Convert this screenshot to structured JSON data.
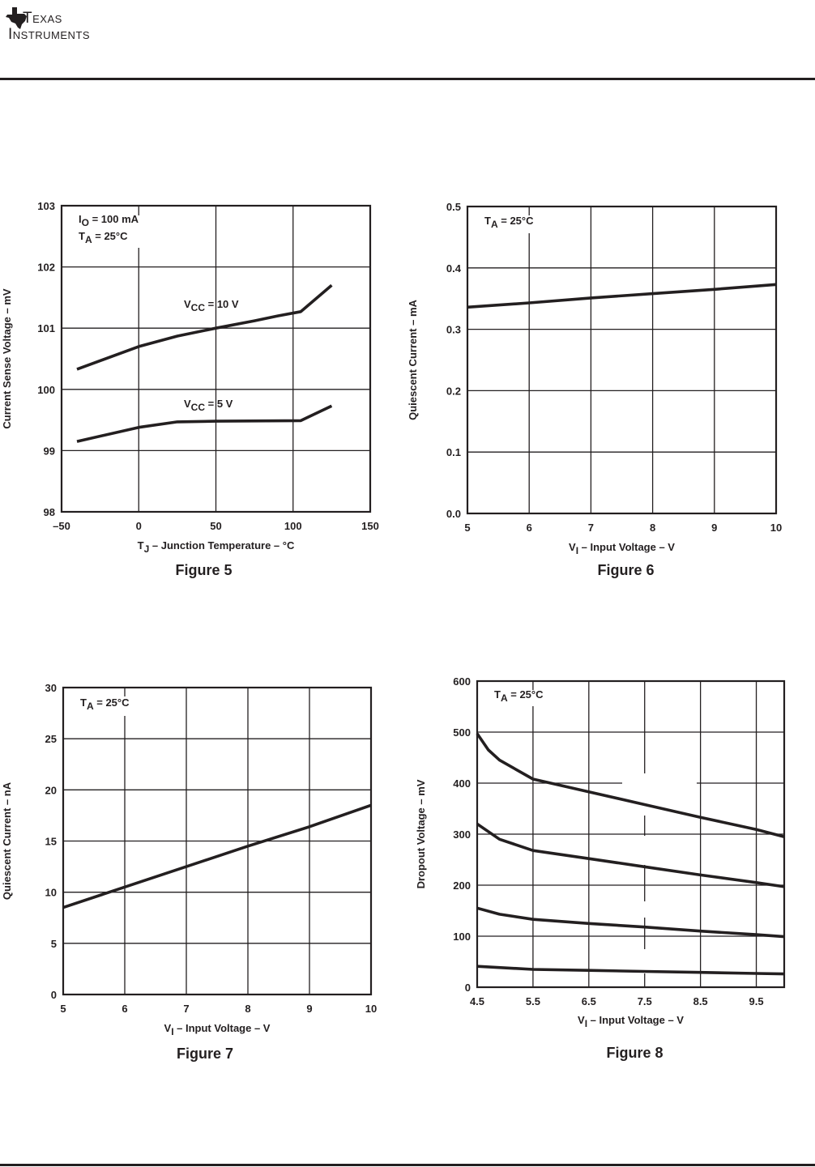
{
  "header": {
    "brand_line1": "Texas",
    "brand_line2": "Instruments",
    "logo_icon": "ti-texas-state-logo-icon"
  },
  "colors": {
    "ink": "#231f20",
    "paper": "#ffffff"
  },
  "chart_data": [
    {
      "id": "fig5",
      "type": "line",
      "figure_label": "Figure 5",
      "title": "",
      "xlabel": "T_J – Junction Temperature – °C",
      "xlabel_main": "T",
      "xlabel_sub": "J",
      "xlabel_rest": " – Junction Temperature – °C",
      "ylabel": "Current Sense Voltage – mV",
      "xlim": [
        -50,
        150
      ],
      "ylim": [
        98,
        103
      ],
      "xticks": [
        -50,
        0,
        50,
        100,
        150
      ],
      "xtick_labels": [
        "–50",
        "0",
        "50",
        "100",
        "150"
      ],
      "yticks": [
        98,
        99,
        100,
        101,
        102,
        103
      ],
      "ytick_labels": [
        "98",
        "99",
        "100",
        "101",
        "102",
        "103"
      ],
      "grid": true,
      "annotations": [
        {
          "main": "I",
          "sub": "O",
          "rest": " = 100 mA"
        },
        {
          "main": "T",
          "sub": "A",
          "rest": " = 25°C"
        }
      ],
      "series": [
        {
          "name": "VCC = 10 V",
          "label_main": "V",
          "label_sub": "CC",
          "label_rest": " =  10 V",
          "x": [
            -40,
            0,
            25,
            50,
            75,
            90,
            105,
            125
          ],
          "y": [
            100.33,
            100.7,
            100.87,
            101.0,
            101.12,
            101.2,
            101.27,
            101.7
          ]
        },
        {
          "name": "VCC = 5 V",
          "label_main": "V",
          "label_sub": "CC",
          "label_rest": " = 5 V",
          "x": [
            -40,
            0,
            25,
            50,
            105,
            125
          ],
          "y": [
            99.15,
            99.38,
            99.47,
            99.48,
            99.49,
            99.73
          ]
        }
      ]
    },
    {
      "id": "fig6",
      "type": "line",
      "figure_label": "Figure 6",
      "title": "",
      "xlabel": "V_I – Input Voltage – V",
      "xlabel_main": "V",
      "xlabel_sub": "I",
      "xlabel_rest": " – Input Voltage – V",
      "ylabel": "Quiescent Current – mA",
      "xlim": [
        5,
        10
      ],
      "ylim": [
        0,
        0.5
      ],
      "xticks": [
        5,
        6,
        7,
        8,
        9,
        10
      ],
      "xtick_labels": [
        "5",
        "6",
        "7",
        "8",
        "9",
        "10"
      ],
      "yticks": [
        0,
        0.1,
        0.2,
        0.3,
        0.4,
        0.5
      ],
      "ytick_labels": [
        "0.0",
        "0.1",
        "0.2",
        "0.3",
        "0.4",
        "0.5"
      ],
      "grid": true,
      "annotations": [
        {
          "main": "T",
          "sub": "A",
          "rest": " = 25°C"
        }
      ],
      "series": [
        {
          "name": "Quiescent current",
          "x": [
            5,
            6,
            7,
            8,
            9,
            10
          ],
          "y": [
            0.336,
            0.343,
            0.351,
            0.358,
            0.365,
            0.373
          ]
        }
      ]
    },
    {
      "id": "fig7",
      "type": "line",
      "figure_label": "Figure 7",
      "title": "",
      "xlabel": "V_I – Input Voltage – V",
      "xlabel_main": "V",
      "xlabel_sub": "I",
      "xlabel_rest": " – Input Voltage – V",
      "ylabel": "Quiescent Current – nA",
      "xlim": [
        5,
        10
      ],
      "ylim": [
        0,
        30
      ],
      "xticks": [
        5,
        6,
        7,
        8,
        9,
        10
      ],
      "xtick_labels": [
        "5",
        "6",
        "7",
        "8",
        "9",
        "10"
      ],
      "yticks": [
        0,
        5,
        10,
        15,
        20,
        25,
        30
      ],
      "ytick_labels": [
        "0",
        "5",
        "10",
        "15",
        "20",
        "25",
        "30"
      ],
      "grid": true,
      "annotations": [
        {
          "main": "T",
          "sub": "A",
          "rest": " = 25°C"
        }
      ],
      "series": [
        {
          "name": "Quiescent current",
          "x": [
            5,
            6,
            7,
            8,
            9,
            10
          ],
          "y": [
            8.5,
            10.5,
            12.5,
            14.5,
            16.4,
            18.5
          ]
        }
      ]
    },
    {
      "id": "fig8",
      "type": "line",
      "figure_label": "Figure 8",
      "title": "",
      "xlabel": "V_I – Input Voltage – V",
      "xlabel_main": "V",
      "xlabel_sub": "I",
      "xlabel_rest": " – Input Voltage – V",
      "ylabel": "Dropout Voltage – mV",
      "xlim": [
        4.5,
        10
      ],
      "ylim": [
        0,
        600
      ],
      "xticks": [
        4.5,
        5.5,
        6.5,
        7.5,
        8.5,
        9.5
      ],
      "xtick_labels": [
        "4.5",
        "5.5",
        "6.5",
        "7.5",
        "8.5",
        "9.5"
      ],
      "yticks": [
        0,
        100,
        200,
        300,
        400,
        500,
        600
      ],
      "ytick_labels": [
        "0",
        "100",
        "200",
        "300",
        "400",
        "500",
        "600"
      ],
      "grid": true,
      "annotations": [
        {
          "main": "T",
          "sub": "A",
          "rest": " = 25°C"
        }
      ],
      "series": [
        {
          "name": "curve-1",
          "x": [
            4.5,
            4.7,
            4.9,
            5.5,
            6.5,
            7.5,
            8.5,
            9.5,
            10
          ],
          "y": [
            497,
            465,
            445,
            408,
            383,
            358,
            333,
            309,
            295
          ]
        },
        {
          "name": "curve-2",
          "x": [
            4.5,
            4.9,
            5.5,
            6.5,
            7.5,
            8.5,
            9.5,
            10
          ],
          "y": [
            320,
            290,
            268,
            252,
            236,
            220,
            205,
            197
          ]
        },
        {
          "name": "curve-3",
          "x": [
            4.5,
            4.9,
            5.5,
            6.5,
            7.5,
            8.5,
            9.5,
            10
          ],
          "y": [
            155,
            143,
            133,
            125,
            118,
            110,
            103,
            99
          ]
        },
        {
          "name": "curve-4",
          "x": [
            4.5,
            5.5,
            6.5,
            7.5,
            8.5,
            9.5,
            10
          ],
          "y": [
            41,
            35,
            33,
            31,
            29,
            27,
            26
          ]
        }
      ]
    }
  ]
}
